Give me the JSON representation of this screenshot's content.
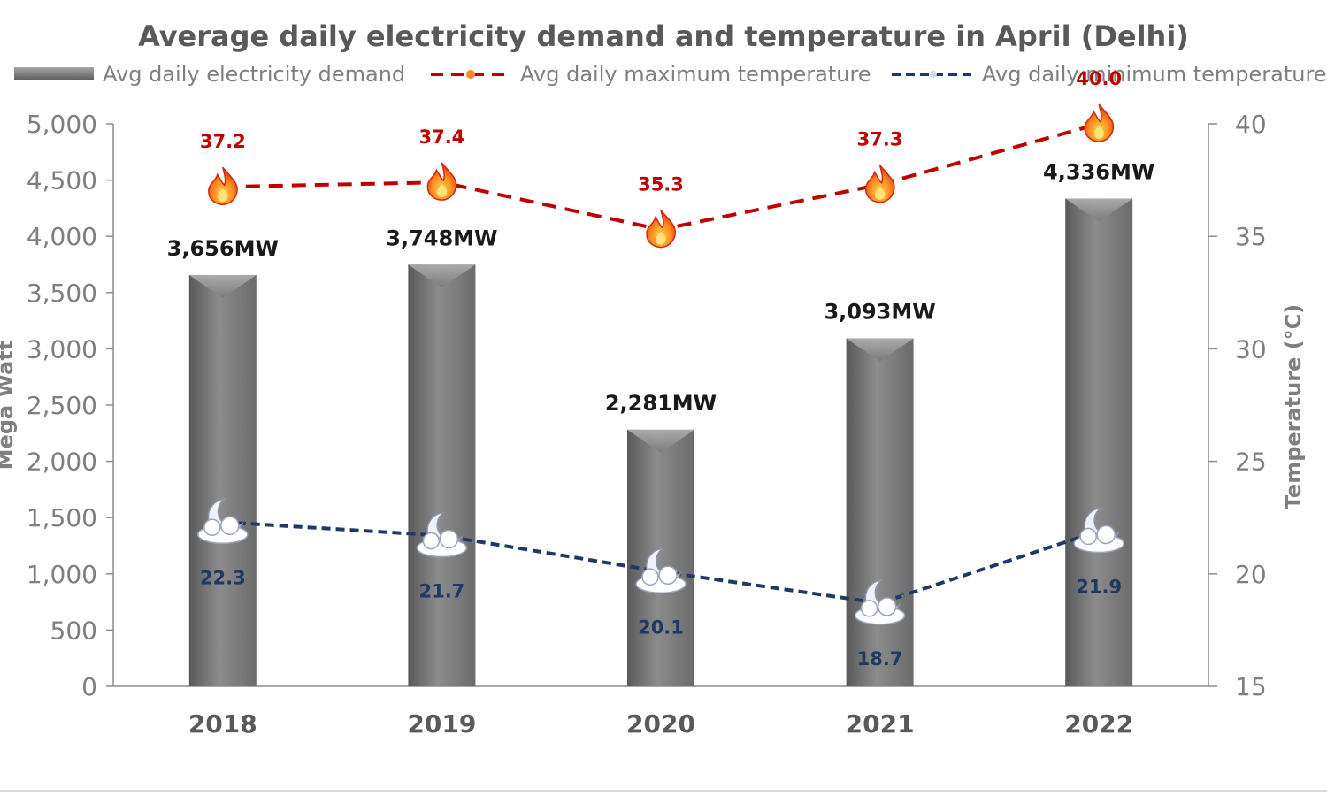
{
  "chart_data": {
    "type": "bar",
    "title": "Average daily electricity demand and temperature in April (Delhi)",
    "categories": [
      "2018",
      "2019",
      "2020",
      "2021",
      "2022"
    ],
    "ylabel_left": "Mega Watt",
    "ylabel_right": "Temperature (°C)",
    "ylim_left": [
      0,
      5000
    ],
    "ylim_right": [
      15,
      40
    ],
    "yticks_left": [
      "0",
      "500",
      "1,000",
      "1,500",
      "2,000",
      "2,500",
      "3,000",
      "3,500",
      "4,000",
      "4,500",
      "5,000"
    ],
    "yticks_right": [
      "15",
      "20",
      "25",
      "30",
      "35",
      "40"
    ],
    "legend_position": "top",
    "series": [
      {
        "name": "Avg daily electricity demand",
        "kind": "bar",
        "axis": "left",
        "values": [
          3656,
          3748,
          2281,
          3093,
          4336
        ],
        "labels": [
          "3,656MW",
          "3,748MW",
          "2,281MW",
          "3,093MW",
          "4,336MW"
        ],
        "color": "#7f7f7f"
      },
      {
        "name": "Avg daily maximum temperature",
        "kind": "line",
        "axis": "right",
        "style": "dashed",
        "marker": "fire-icon",
        "values": [
          37.2,
          37.4,
          35.3,
          37.3,
          40.0
        ],
        "labels": [
          "37.2",
          "37.4",
          "35.3",
          "37.3",
          "40.0"
        ],
        "color": "#c00000"
      },
      {
        "name": "Avg daily minimum temperature",
        "kind": "line",
        "axis": "right",
        "style": "dashed",
        "marker": "moon-cloud-icon",
        "values": [
          22.3,
          21.7,
          20.1,
          18.7,
          21.9
        ],
        "labels": [
          "22.3",
          "21.7",
          "20.1",
          "18.7",
          "21.9"
        ],
        "color": "#1f3864"
      }
    ]
  }
}
